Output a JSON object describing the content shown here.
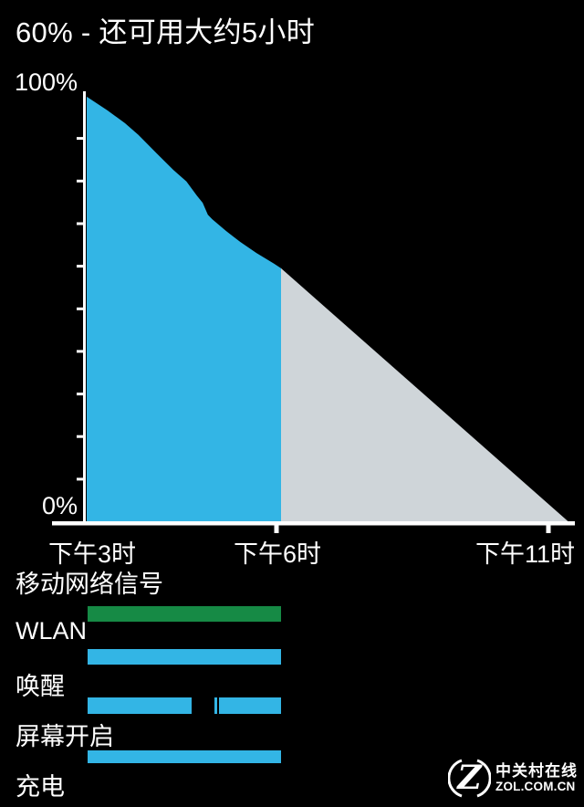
{
  "header": {
    "title": "60% - 还可用大约5小时"
  },
  "chart": {
    "y_axis": {
      "max_label": "100%",
      "min_label": "0%"
    },
    "x_axis": {
      "labels": [
        "下午3时",
        "下午6时",
        "下午11时"
      ]
    },
    "axis_color": "#ffffff"
  },
  "chart_data": {
    "type": "area",
    "title": "",
    "xlabel": "",
    "ylabel": "",
    "ylim": [
      0,
      100
    ],
    "x_unit": "hour_of_day_24h",
    "x_tick_labels": [
      "下午3时",
      "下午6时",
      "下午11时"
    ],
    "x_tick_hours": [
      15,
      18,
      23
    ],
    "grid": false,
    "legend": false,
    "series": [
      {
        "name": "history",
        "color": "#33b5e5",
        "points": [
          [
            15.0,
            99.8
          ],
          [
            15.32,
            96.6
          ],
          [
            15.59,
            93.6
          ],
          [
            15.8,
            90.8
          ],
          [
            16.08,
            86.5
          ],
          [
            16.34,
            82.6
          ],
          [
            16.54,
            79.9
          ],
          [
            16.7,
            76.6
          ],
          [
            16.79,
            74.9
          ],
          [
            16.87,
            72.1
          ],
          [
            16.94,
            71.0
          ],
          [
            17.15,
            68.3
          ],
          [
            17.37,
            65.7
          ],
          [
            17.62,
            63.1
          ],
          [
            17.89,
            60.6
          ],
          [
            18.0,
            59.5
          ]
        ]
      },
      {
        "name": "projection",
        "color": "#cfd5d9",
        "points": [
          [
            18.0,
            59.5
          ],
          [
            23.2,
            0
          ]
        ]
      }
    ]
  },
  "rows": [
    {
      "label": "移动网络信号",
      "color": "#168a45",
      "segments": [
        [
          0,
          100
        ]
      ]
    },
    {
      "label": "WLAN",
      "color": "#33b5e5",
      "segments": [
        [
          0,
          100
        ]
      ]
    },
    {
      "label": "唤醒",
      "color": "#33b5e5",
      "segments": [
        [
          0,
          53.8
        ],
        [
          65.6,
          66.8
        ],
        [
          67.9,
          100
        ]
      ]
    },
    {
      "label": "屏幕开启",
      "color": "#33b5e5",
      "segments": [
        [
          0,
          100
        ]
      ]
    },
    {
      "label": "充电",
      "color": "#33b5e5",
      "segments": []
    }
  ],
  "watermark": {
    "site_name": "中关村在线",
    "site_url": "ZOL.COM.CN"
  }
}
